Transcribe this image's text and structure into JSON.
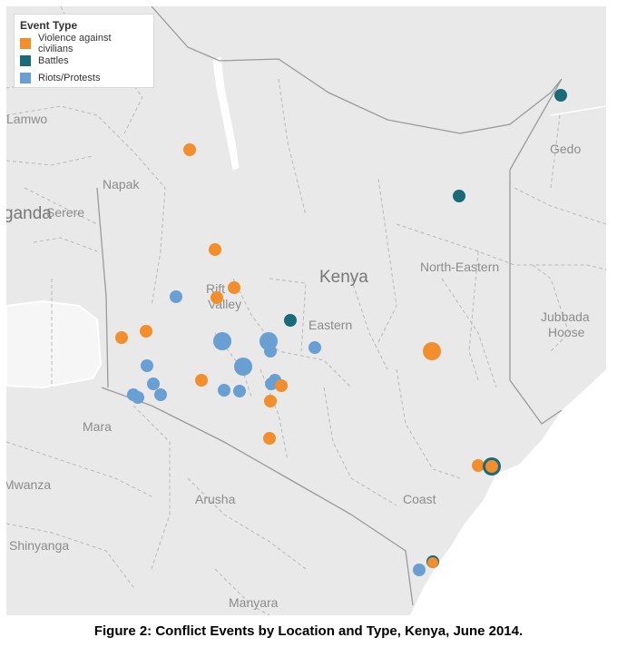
{
  "legend": {
    "title": "Event Type",
    "items": [
      {
        "label": "Violence against civilians",
        "color": "#f28e2b"
      },
      {
        "label": "Battles",
        "color": "#1b6a7a"
      },
      {
        "label": "Riots/Protests",
        "color": "#6a9fd4"
      }
    ]
  },
  "places": {
    "lamwo": "Lamwo",
    "napak": "Napak",
    "uganda": "ganda",
    "serere": "Serere",
    "rift": "Rift",
    "valley": "Valley",
    "kenya": "Kenya",
    "eastern": "Eastern",
    "north_eastern": "North-Eastern",
    "gedo": "Gedo",
    "jubbada": "Jubbada",
    "hoose": "Hoose",
    "mara": "Mara",
    "mwanza": "Mwanza",
    "shinyanga": "Shinyanga",
    "arusha": "Arusha",
    "coast": "Coast",
    "manyara": "Manyara"
  },
  "caption": "Figure 2: Conflict Events by Location and Type, Kenya, June 2014."
}
